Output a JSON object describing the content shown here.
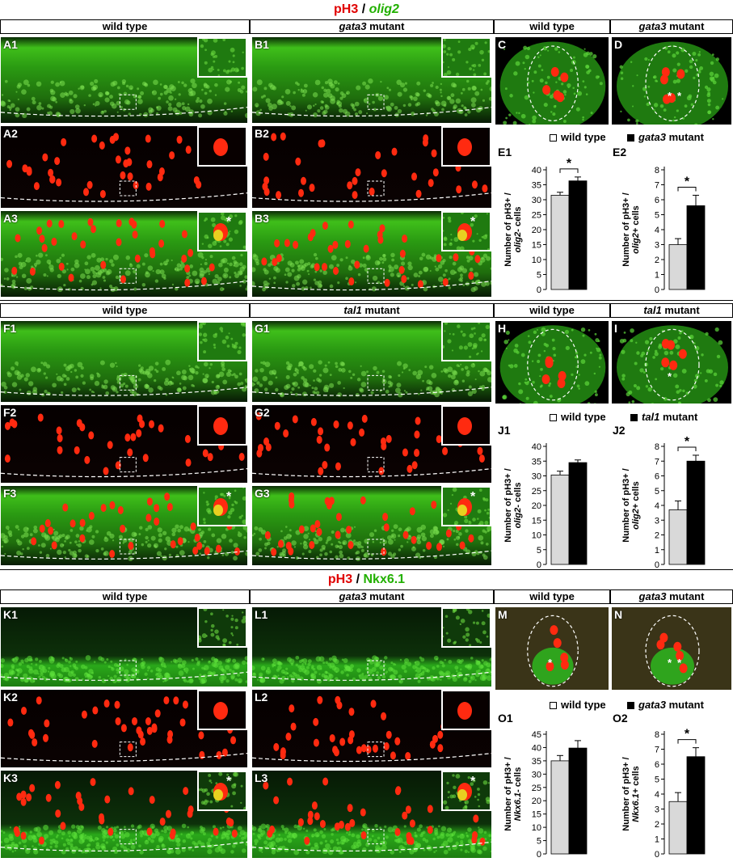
{
  "figure": {
    "title1": {
      "pre": "pH3",
      "sep": " / ",
      "post": "olig2"
    },
    "title2": {
      "pre": "pH3",
      "sep": " / ",
      "post": "Nkx6.1"
    },
    "headers": {
      "h1": "wild type",
      "h2": "gata3",
      "h2b": " mutant",
      "h3": "wild type",
      "h4": "gata3",
      "h4b": " mutant",
      "h5": "wild type",
      "h6": "tal1",
      "h6b": " mutant",
      "h7": "wild type",
      "h8": "tal1",
      "h8b": " mutant",
      "h9": "wild type",
      "h10": "gata3",
      "h10b": " mutant",
      "h11": "wild type",
      "h12": "gata3",
      "h12b": " mutant"
    },
    "panels": {
      "A1": "A1",
      "A2": "A2",
      "A3": "A3",
      "B1": "B1",
      "B2": "B2",
      "B3": "B3",
      "C": "C",
      "D": "D",
      "F1": "F1",
      "F2": "F2",
      "F3": "F3",
      "G1": "G1",
      "G2": "G2",
      "G3": "G3",
      "H": "H",
      "I": "I",
      "K1": "K1",
      "K2": "K2",
      "K3": "K3",
      "L1": "L1",
      "L2": "L2",
      "L3": "L3",
      "M": "M",
      "N": "N",
      "E1": "E1",
      "E2": "E2",
      "J1": "J1",
      "J2": "J2",
      "O1": "O1",
      "O2": "O2"
    },
    "legends": {
      "wt": "wild type",
      "gata3": "gata3",
      "gata3b": " mutant",
      "tal1": "tal1",
      "tal1b": " mutant"
    },
    "asterisk": "*"
  },
  "colors": {
    "wt_bar": "#d9d9d9",
    "mut_bar": "#000000",
    "red": "#e00000",
    "green": "#22b000"
  },
  "chart_data": [
    {
      "id": "E1",
      "type": "bar",
      "categories": [
        "wild type",
        "gata3 mutant"
      ],
      "values": [
        31.5,
        36.3
      ],
      "errors": [
        1.0,
        1.3
      ],
      "ylim": [
        0,
        40
      ],
      "ticks": [
        0,
        5,
        10,
        15,
        20,
        25,
        30,
        35,
        40
      ],
      "ylabel_l1": "Number of pH3+ /",
      "ylabel_l2a": "olig2",
      "ylabel_l2b": "- cells",
      "significant": true
    },
    {
      "id": "E2",
      "type": "bar",
      "categories": [
        "wild type",
        "gata3 mutant"
      ],
      "values": [
        3.0,
        5.6
      ],
      "errors": [
        0.4,
        0.7
      ],
      "ylim": [
        0,
        8
      ],
      "ticks": [
        0,
        1,
        2,
        3,
        4,
        5,
        6,
        7,
        8
      ],
      "ylabel_l1": "Number of pH3+ /",
      "ylabel_l2a": "olig2",
      "ylabel_l2b": "+ cells",
      "significant": true
    },
    {
      "id": "J1",
      "type": "bar",
      "categories": [
        "wild type",
        "tal1 mutant"
      ],
      "values": [
        30.3,
        34.5
      ],
      "errors": [
        1.3,
        0.9
      ],
      "ylim": [
        0,
        40
      ],
      "ticks": [
        0,
        5,
        10,
        15,
        20,
        25,
        30,
        35,
        40
      ],
      "ylabel_l1": "Number of pH3+ /",
      "ylabel_l2a": "olig2",
      "ylabel_l2b": "- cells",
      "significant": false
    },
    {
      "id": "J2",
      "type": "bar",
      "categories": [
        "wild type",
        "tal1 mutant"
      ],
      "values": [
        3.7,
        7.0
      ],
      "errors": [
        0.6,
        0.4
      ],
      "ylim": [
        0,
        8
      ],
      "ticks": [
        0,
        1,
        2,
        3,
        4,
        5,
        6,
        7,
        8
      ],
      "ylabel_l1": "Number of pH3+ /",
      "ylabel_l2a": "olig2",
      "ylabel_l2b": "+ cells",
      "significant": true
    },
    {
      "id": "O1",
      "type": "bar",
      "categories": [
        "wild type",
        "gata3 mutant"
      ],
      "values": [
        35.0,
        39.8
      ],
      "errors": [
        2.0,
        2.8
      ],
      "ylim": [
        0,
        45
      ],
      "ticks": [
        0,
        5,
        10,
        15,
        20,
        25,
        30,
        35,
        40,
        45
      ],
      "ylabel_l1": "Number of pH3+ /",
      "ylabel_l2a": "Nkx6.1",
      "ylabel_l2b": "- cells",
      "significant": false
    },
    {
      "id": "O2",
      "type": "bar",
      "categories": [
        "wild type",
        "gata3 mutant"
      ],
      "values": [
        3.5,
        6.5
      ],
      "errors": [
        0.6,
        0.6
      ],
      "ylim": [
        0,
        8
      ],
      "ticks": [
        0,
        1,
        2,
        3,
        4,
        5,
        6,
        7,
        8
      ],
      "ylabel_l1": "Number of pH3+ /",
      "ylabel_l2a": "Nkx6.1",
      "ylabel_l2b": "+ cells",
      "significant": true
    }
  ]
}
